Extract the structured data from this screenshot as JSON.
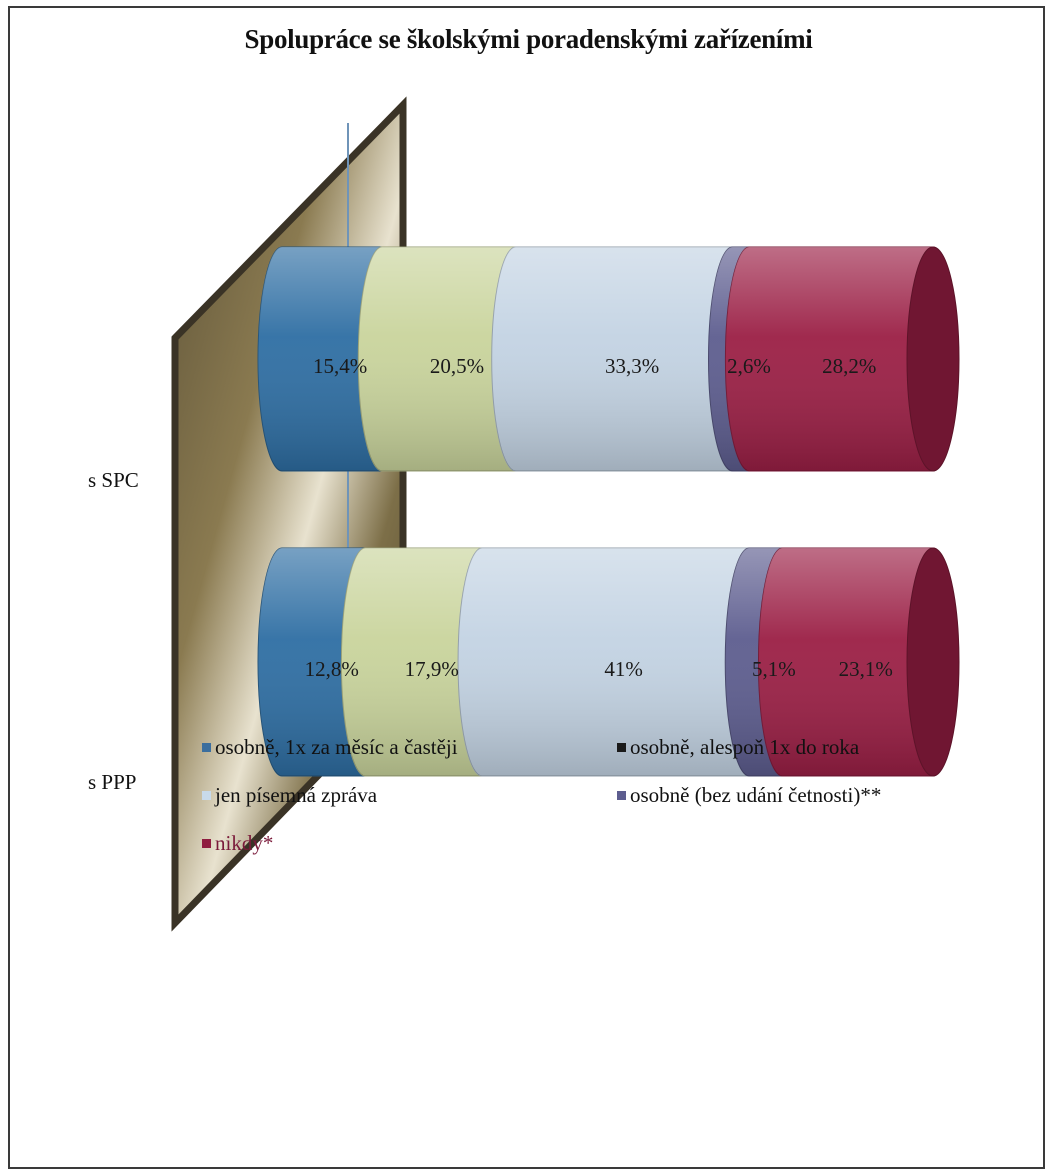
{
  "chart_data": {
    "type": "bar",
    "orientation": "horizontal",
    "stacked": "percent",
    "style": "3d-cylinder",
    "title": "Spolupráce se školskými poradenskými zařízeními",
    "categories": [
      "s SPC",
      "s PPP"
    ],
    "series": [
      {
        "name": "osobně, 1x za měsíc a častěji",
        "color": "#2e6ea3",
        "values": [
          15.4,
          12.8
        ],
        "labels": [
          "15,4%",
          "12,8%"
        ]
      },
      {
        "name": "osobně, alespoň 1x do roka",
        "color": "#c9d49c",
        "values": [
          20.5,
          17.9
        ],
        "labels": [
          "20,5%",
          "17,9%"
        ]
      },
      {
        "name": "jen písemná zpráva",
        "color": "#c3d3e3",
        "values": [
          33.3,
          41.0
        ],
        "labels": [
          "33,3%",
          "41%"
        ]
      },
      {
        "name": "osobně (bez udání četnosti)**",
        "color": "#5d5d8f",
        "values": [
          2.6,
          5.1
        ],
        "labels": [
          "2,6%",
          "5,1%"
        ]
      },
      {
        "name": "nikdy*",
        "color": "#9b1f45",
        "values": [
          28.2,
          23.1
        ],
        "labels": [
          "28,2%",
          "23,1%"
        ]
      }
    ],
    "legend_position": "bottom"
  },
  "legend": [
    {
      "label": "osobně, 1x za měsíc a častěji",
      "color": "#3b6e9e"
    },
    {
      "label": "osobně, alespoň 1x do roka",
      "color": "#1a1a1a"
    },
    {
      "label": "jen písemná zpráva",
      "color": "#c8daea"
    },
    {
      "label": "osobně (bez udání četnosti)**",
      "color": "#5d5d8f"
    },
    {
      "label": "nikdy*",
      "color": "#8f1c3f",
      "text_color": "#7a1a3a"
    }
  ]
}
